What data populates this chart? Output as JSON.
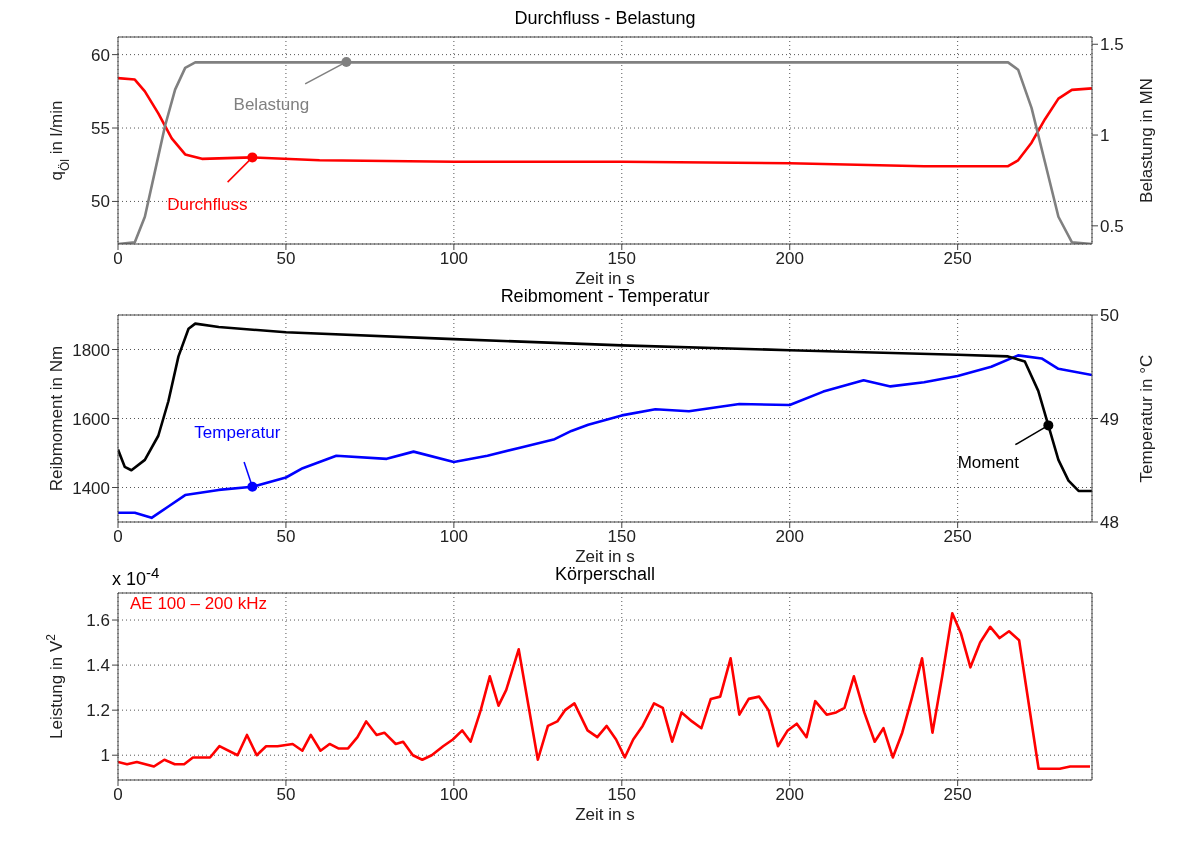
{
  "chart_data": [
    {
      "type": "line",
      "title": "Durchfluss - Belastung",
      "xlabel": "Zeit in s",
      "ylabel": "q$_{Öl}$ in l/min",
      "y2label": "Belastung in MN",
      "xlim": [
        0,
        290
      ],
      "xticks": [
        0,
        50,
        100,
        150,
        200,
        250
      ],
      "ylim": [
        47.1,
        61.2
      ],
      "yticks": [
        50,
        55,
        60
      ],
      "y2lim": [
        0.4,
        1.54
      ],
      "y2ticks": [
        0.5,
        1,
        1.5
      ],
      "grid": true,
      "series": [
        {
          "color": "#ff0000",
          "x": [
            0,
            5,
            8,
            12,
            16,
            20,
            25,
            40,
            60,
            100,
            150,
            200,
            240,
            265,
            268,
            272,
            276,
            280,
            284,
            290
          ],
          "values": [
            58.4,
            58.3,
            57.5,
            56,
            54.3,
            53.2,
            52.9,
            53.0,
            52.8,
            52.7,
            52.7,
            52.6,
            52.4,
            52.4,
            52.8,
            54,
            55.6,
            57,
            57.6,
            57.7
          ]
        },
        {
          "color": "#808080",
          "axis": "y2",
          "x": [
            0,
            5,
            8,
            11,
            14,
            17,
            20,
            23,
            68,
            265,
            268,
            272,
            276,
            280,
            284,
            290
          ],
          "values": [
            0.4,
            0.41,
            0.55,
            0.8,
            1.05,
            1.25,
            1.37,
            1.4,
            1.4,
            1.4,
            1.36,
            1.15,
            0.85,
            0.55,
            0.41,
            0.4
          ]
        }
      ],
      "annotations": [
        {
          "text": "Durchfluss",
          "x": 40,
          "y": 53.0
        },
        {
          "text": "Belastung",
          "x": 68,
          "y": 59.5
        }
      ]
    },
    {
      "type": "line",
      "title": "Reibmoment - Temperatur",
      "xlabel": "Zeit in s",
      "ylabel": "Reibmoment in Nm",
      "y2label": "Temperatur in °C",
      "xlim": [
        0,
        290
      ],
      "xticks": [
        0,
        50,
        100,
        150,
        200,
        250
      ],
      "ylim": [
        1300,
        1900
      ],
      "yticks": [
        1400,
        1600,
        1800
      ],
      "y2lim": [
        48,
        50
      ],
      "y2ticks": [
        48,
        49,
        50
      ],
      "grid": true,
      "series": [
        {
          "color": "#0000ff",
          "axis": "y2",
          "x": [
            0,
            5,
            10,
            15,
            20,
            30,
            40,
            50,
            55,
            65,
            80,
            88,
            100,
            110,
            120,
            130,
            135,
            140,
            150,
            160,
            170,
            185,
            200,
            210,
            222,
            230,
            240,
            250,
            260,
            268,
            275,
            280,
            290
          ],
          "values": [
            48.09,
            48.09,
            48.04,
            48.15,
            48.26,
            48.31,
            48.34,
            48.43,
            48.52,
            48.64,
            48.61,
            48.68,
            48.58,
            48.64,
            48.72,
            48.8,
            48.88,
            48.94,
            49.03,
            49.09,
            49.07,
            49.14,
            49.13,
            49.26,
            49.37,
            49.31,
            49.35,
            49.41,
            49.5,
            49.61,
            49.58,
            49.48,
            49.42
          ]
        },
        {
          "color": "#000000",
          "x": [
            0,
            2,
            4,
            8,
            12,
            15,
            18,
            21,
            23,
            30,
            50,
            100,
            150,
            200,
            250,
            265,
            270,
            274,
            277,
            280,
            283,
            286,
            290
          ],
          "values": [
            1510,
            1460,
            1450,
            1480,
            1550,
            1650,
            1780,
            1860,
            1875,
            1865,
            1850,
            1830,
            1812,
            1798,
            1785,
            1780,
            1765,
            1680,
            1580,
            1480,
            1420,
            1390,
            1390
          ]
        }
      ],
      "annotations": [
        {
          "text": "Temperatur",
          "x": 40,
          "y": 1402
        },
        {
          "text": "Moment",
          "x": 277,
          "y": 1580
        }
      ]
    },
    {
      "type": "line",
      "title": "Körperschall",
      "xlabel": "Zeit in s",
      "ylabel": "Leistung in V$^{2}$",
      "xlim": [
        0,
        290
      ],
      "xticks": [
        0,
        50,
        100,
        150,
        200,
        250
      ],
      "ylim": [
        0.89,
        1.72
      ],
      "yticks": [
        1,
        1.2,
        1.4,
        1.6
      ],
      "grid": true,
      "legend": "top left",
      "series": [
        {
          "name": "AE 100 – 200 kHz",
          "color": "#ff0000",
          "x": [
            0,
            2.7,
            5.6,
            10.7,
            13.8,
            16.9,
            19.7,
            22.3,
            27.4,
            30.2,
            35.6,
            38.4,
            41.3,
            44.1,
            47.5,
            52,
            54.9,
            57.4,
            60.3,
            63,
            65.6,
            68.5,
            71.3,
            73.9,
            77,
            79.3,
            82.7,
            84.9,
            87.8,
            90.6,
            93.4,
            96.8,
            99.7,
            102.5,
            105,
            108,
            110.7,
            113.3,
            115.6,
            119.3,
            125,
            128,
            130.8,
            133.1,
            135.9,
            139.8,
            142.7,
            145.5,
            148.3,
            150.9,
            153.4,
            156.2,
            159.6,
            162.2,
            165,
            167.8,
            170.9,
            173.7,
            176.5,
            179.3,
            182.4,
            185,
            187.8,
            190.9,
            193.7,
            196.5,
            199.4,
            202.1,
            205,
            207.6,
            211,
            213.8,
            216.3,
            219.1,
            222.2,
            225.3,
            227.9,
            230.7,
            233.5,
            236.3,
            239.4,
            242.5,
            245.4,
            248.4,
            251,
            253.8,
            256.7,
            259.7,
            262.5,
            265.3,
            268.3,
            274.1,
            280.4,
            283.5,
            289.4
          ],
          "values": [
            0.97,
            0.96,
            0.97,
            0.95,
            0.98,
            0.96,
            0.96,
            0.99,
            0.99,
            1.04,
            1.0,
            1.09,
            1.0,
            1.04,
            1.04,
            1.05,
            1.02,
            1.09,
            1.02,
            1.05,
            1.03,
            1.03,
            1.08,
            1.15,
            1.09,
            1.1,
            1.05,
            1.06,
            1.0,
            0.98,
            1.0,
            1.04,
            1.07,
            1.11,
            1.06,
            1.2,
            1.35,
            1.22,
            1.29,
            1.47,
            0.98,
            1.13,
            1.15,
            1.2,
            1.23,
            1.11,
            1.08,
            1.13,
            1.07,
            0.99,
            1.07,
            1.13,
            1.23,
            1.21,
            1.06,
            1.19,
            1.15,
            1.12,
            1.25,
            1.26,
            1.43,
            1.18,
            1.25,
            1.26,
            1.2,
            1.04,
            1.11,
            1.14,
            1.08,
            1.24,
            1.18,
            1.19,
            1.21,
            1.35,
            1.19,
            1.06,
            1.12,
            0.99,
            1.1,
            1.25,
            1.43,
            1.1,
            1.35,
            1.63,
            1.54,
            1.39,
            1.5,
            1.57,
            1.52,
            1.55,
            1.51,
            0.94,
            0.94,
            0.95,
            0.95
          ]
        }
      ],
      "annotations": [
        "x 10$^{-4}$"
      ]
    }
  ]
}
